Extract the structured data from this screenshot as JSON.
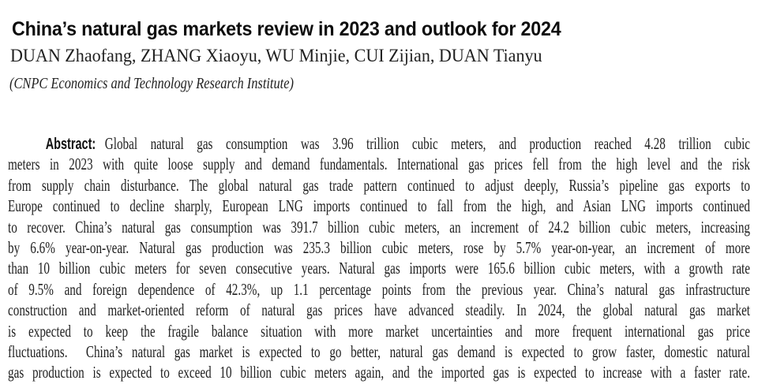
{
  "page": {
    "background": "#ffffff",
    "title_color": "#0d0d0d",
    "body_text_color": "#1f1f1f"
  },
  "header": {
    "title": "China’s natural gas markets review in 2023 and outlook for 2024",
    "authors": "DUAN Zhaofang, ZHANG Xiaoyu, WU Minjie, CUI Zijian, DUAN Tianyu",
    "affiliation": "(CNPC Economics and Technology Research Institute)"
  },
  "abstract": {
    "label": "Abstract:",
    "lines": [
      "Global natural gas consumption was 3.96 trillion cubic meters, and production reached 4.28 trillion cubic",
      "meters in 2023 with quite loose supply and demand fundamentals. International gas prices fell from the high level and the risk",
      "from supply chain disturbance. The global natural gas trade pattern continued to adjust deeply, Russia’s pipeline gas exports to",
      "Europe continued to decline sharply, European LNG imports continued to fall from the high, and Asian LNG imports continued",
      "to recover. China’s natural gas consumption was 391.7 billion cubic meters, an increment of 24.2 billion cubic meters, increasing",
      "by 6.6% year-on-year. Natural gas production was 235.3 billion cubic meters, rose by 5.7% year-on-year, an increment of more",
      "than 10 billion cubic meters for seven consecutive years. Natural gas imports were 165.6 billion cubic meters, with a growth rate",
      "of 9.5% and foreign dependence of 42.3%, up 1.1 percentage points from the previous year. China’s natural gas infrastructure",
      "construction and market-oriented reform of natural gas prices have advanced steadily. In 2024, the global natural gas market",
      "is expected to keep the fragile balance situation with more market uncertainties and more frequent international gas price",
      "fluctuations.  China’s natural gas market is expected to go better, natural gas demand is expected to grow faster, domestic natural",
      "gas production is expected to exceed 10 billion cubic meters again, and the imported gas is expected to increase with a faster rate."
    ]
  }
}
